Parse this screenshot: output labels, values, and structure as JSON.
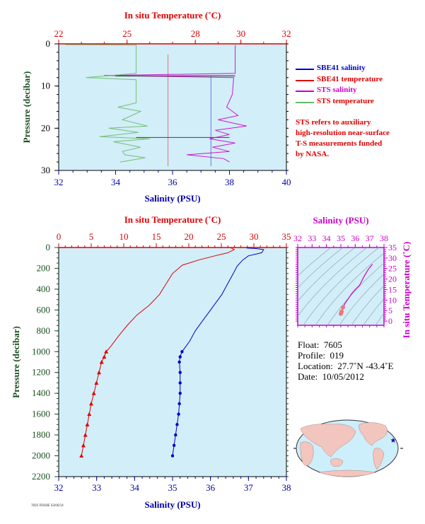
{
  "colors": {
    "plot_bg": "#d2eef8",
    "temp_axis": "#dd0000",
    "sal_axis": "#0000aa",
    "pressure_axis": "#1a5020",
    "sbe_salinity": "#0000cc",
    "sbe_temperature": "#dd0000",
    "sts_salinity": "#cc00cc",
    "sts_temperature": "#66bb66",
    "inset_axis": "#cc00cc"
  },
  "top_panel": {
    "temp_label": "In situ Temperature (˚C)",
    "sal_label": "Salinity (PSU)",
    "pressure_label": "Pressure (decibar)",
    "temp_ticks": [
      "22",
      "25",
      "28",
      "30",
      "32"
    ],
    "sal_ticks": [
      "32",
      "34",
      "36",
      "38",
      "40"
    ],
    "pressure_ticks": [
      "0",
      "10",
      "20",
      "30"
    ]
  },
  "legend": [
    {
      "label": "SBE41 salinity",
      "color": "#0000cc",
      "text_color": "#0000cc"
    },
    {
      "label": "SBE41 temperature",
      "color": "#dd0000",
      "text_color": "#dd0000"
    },
    {
      "label": "STS salinity",
      "color": "#cc00cc",
      "text_color": "#cc00cc"
    },
    {
      "label": "STS temperature",
      "color": "#66bb66",
      "text_color": "#dd0000"
    }
  ],
  "note": {
    "lines": [
      "STS refers to auxiliary",
      "high-resolution near-surface",
      "T-S measurements funded",
      "by NASA."
    ]
  },
  "bottom_panel": {
    "temp_label": "In situ Temperature (˚C)",
    "sal_label": "Salinity (PSU)",
    "pressure_label": "Pressure (decibar)",
    "temp_ticks": [
      "0",
      "5",
      "10",
      "15",
      "20",
      "25",
      "30",
      "35"
    ],
    "sal_ticks": [
      "32",
      "33",
      "34",
      "35",
      "36",
      "37",
      "38"
    ],
    "pressure_ticks": [
      "0",
      "200",
      "400",
      "600",
      "800",
      "1000",
      "1200",
      "1400",
      "1600",
      "1800",
      "2000",
      "2200"
    ]
  },
  "inset": {
    "sal_label": "Salinity (PSU)",
    "temp_label": "In situ Temperature (˚C)",
    "sal_ticks": [
      "32",
      "33",
      "34",
      "35",
      "36",
      "37",
      "38"
    ],
    "temp_ticks": [
      "0",
      "5",
      "10",
      "15",
      "20",
      "25",
      "30",
      "35"
    ]
  },
  "info": {
    "float_label": "Float:",
    "float_value": "7605",
    "profile_label": "Profile:",
    "profile_value": "019",
    "location_label": "Location:",
    "location_value": "27.7˚N  -43.4˚E",
    "date_label": "Date:",
    "date_value": "10/05/2012"
  },
  "footer_text": "7605 P2600E 03/06/14",
  "chart_data": [
    {
      "type": "line",
      "title": "",
      "xlabel": "Salinity (PSU)",
      "x2label": "In situ Temperature (˚C)",
      "ylabel": "Pressure (decibar)",
      "xlim_salinity": [
        32,
        40
      ],
      "xlim_temperature": [
        22,
        32
      ],
      "ylim": [
        30,
        0
      ],
      "series": [
        {
          "name": "SBE41 salinity",
          "axis": "salinity",
          "points": [
            [
              37.35,
              7.7
            ],
            [
              37.35,
              29
            ]
          ]
        },
        {
          "name": "SBE41 temperature",
          "axis": "temperature",
          "points": [
            [
              26.8,
              2.5
            ],
            [
              26.8,
              29
            ]
          ]
        },
        {
          "name": "STS salinity",
          "axis": "salinity",
          "points": [
            [
              38.2,
              0.3
            ],
            [
              38.2,
              7
            ],
            [
              33.6,
              7.5
            ],
            [
              38.15,
              8
            ],
            [
              38.1,
              12
            ],
            [
              37.9,
              15
            ],
            [
              38.3,
              17
            ],
            [
              37.6,
              18
            ],
            [
              38.6,
              19.5
            ],
            [
              37.5,
              20.5
            ],
            [
              38.0,
              21.5
            ],
            [
              37.3,
              22.5
            ],
            [
              38.2,
              23.5
            ],
            [
              37.4,
              24.5
            ],
            [
              38.0,
              25.5
            ],
            [
              36.5,
              26.3
            ],
            [
              37.8,
              27.2
            ],
            [
              38.0,
              28
            ]
          ]
        },
        {
          "name": "STS temperature",
          "axis": "temperature",
          "points": [
            [
              22.3,
              0.2
            ],
            [
              25.4,
              0.3
            ],
            [
              25.4,
              7
            ],
            [
              23.2,
              8
            ],
            [
              25.4,
              8.5
            ],
            [
              25.4,
              14
            ],
            [
              24.6,
              15
            ],
            [
              25.6,
              16
            ],
            [
              24.8,
              18
            ],
            [
              25.9,
              19.5
            ],
            [
              24.2,
              20
            ],
            [
              25.5,
              21
            ],
            [
              23.8,
              22
            ],
            [
              26.0,
              22.5
            ],
            [
              24.4,
              23.2
            ],
            [
              25.6,
              24.5
            ],
            [
              24.8,
              25.5
            ],
            [
              24.9,
              26.3
            ],
            [
              25.8,
              27
            ],
            [
              24.7,
              28
            ]
          ]
        }
      ]
    },
    {
      "type": "line",
      "title": "",
      "xlabel": "Salinity (PSU)",
      "x2label": "In situ Temperature (˚C)",
      "ylabel": "Pressure (decibar)",
      "xlim_salinity": [
        32,
        38
      ],
      "xlim_temperature": [
        0,
        35
      ],
      "ylim": [
        2200,
        0
      ],
      "series": [
        {
          "name": "Salinity",
          "axis": "salinity",
          "points": [
            [
              36.95,
              5
            ],
            [
              37.2,
              10
            ],
            [
              37.4,
              20
            ],
            [
              37.35,
              50
            ],
            [
              37.0,
              80
            ],
            [
              36.85,
              120
            ],
            [
              36.7,
              180
            ],
            [
              36.6,
              250
            ],
            [
              36.45,
              350
            ],
            [
              36.3,
              450
            ],
            [
              36.0,
              600
            ],
            [
              35.8,
              700
            ],
            [
              35.6,
              800
            ],
            [
              35.45,
              900
            ],
            [
              35.25,
              1000
            ],
            [
              35.2,
              1050
            ],
            [
              35.18,
              1100
            ],
            [
              35.2,
              1200
            ],
            [
              35.2,
              1300
            ],
            [
              35.2,
              1400
            ],
            [
              35.18,
              1500
            ],
            [
              35.16,
              1600
            ],
            [
              35.12,
              1700
            ],
            [
              35.08,
              1800
            ],
            [
              35.04,
              1900
            ],
            [
              35.0,
              2000
            ]
          ]
        },
        {
          "name": "Temperature",
          "axis": "temperature",
          "points": [
            [
              26.5,
              5
            ],
            [
              27.0,
              20
            ],
            [
              26.0,
              50
            ],
            [
              24.0,
              80
            ],
            [
              21.5,
              120
            ],
            [
              19.0,
              170
            ],
            [
              17.5,
              250
            ],
            [
              16.5,
              350
            ],
            [
              15.5,
              450
            ],
            [
              14.0,
              550
            ],
            [
              12.0,
              650
            ],
            [
              10.5,
              750
            ],
            [
              9.2,
              850
            ],
            [
              8.0,
              950
            ],
            [
              7.3,
              1000
            ],
            [
              7.0,
              1050
            ],
            [
              6.6,
              1100
            ],
            [
              6.2,
              1200
            ],
            [
              5.8,
              1300
            ],
            [
              5.4,
              1400
            ],
            [
              5.0,
              1500
            ],
            [
              4.7,
              1600
            ],
            [
              4.4,
              1700
            ],
            [
              4.1,
              1800
            ],
            [
              3.8,
              1900
            ],
            [
              3.5,
              2000
            ]
          ]
        }
      ]
    },
    {
      "type": "scatter",
      "title": "",
      "xlabel": "Salinity (PSU)",
      "ylabel": "In situ Temperature (˚C)",
      "xlim": [
        32,
        38
      ],
      "ylim": [
        -2,
        35
      ],
      "series": [
        {
          "name": "T-S",
          "points": [
            [
              35.0,
              3.5
            ],
            [
              35.05,
              4.5
            ],
            [
              35.15,
              6.5
            ],
            [
              35.3,
              8.5
            ],
            [
              35.5,
              10.5
            ],
            [
              35.75,
              13.0
            ],
            [
              36.0,
              15.0
            ],
            [
              36.3,
              17.0
            ],
            [
              36.6,
              21.0
            ],
            [
              36.9,
              24.5
            ],
            [
              37.2,
              27.0
            ]
          ]
        }
      ]
    }
  ]
}
